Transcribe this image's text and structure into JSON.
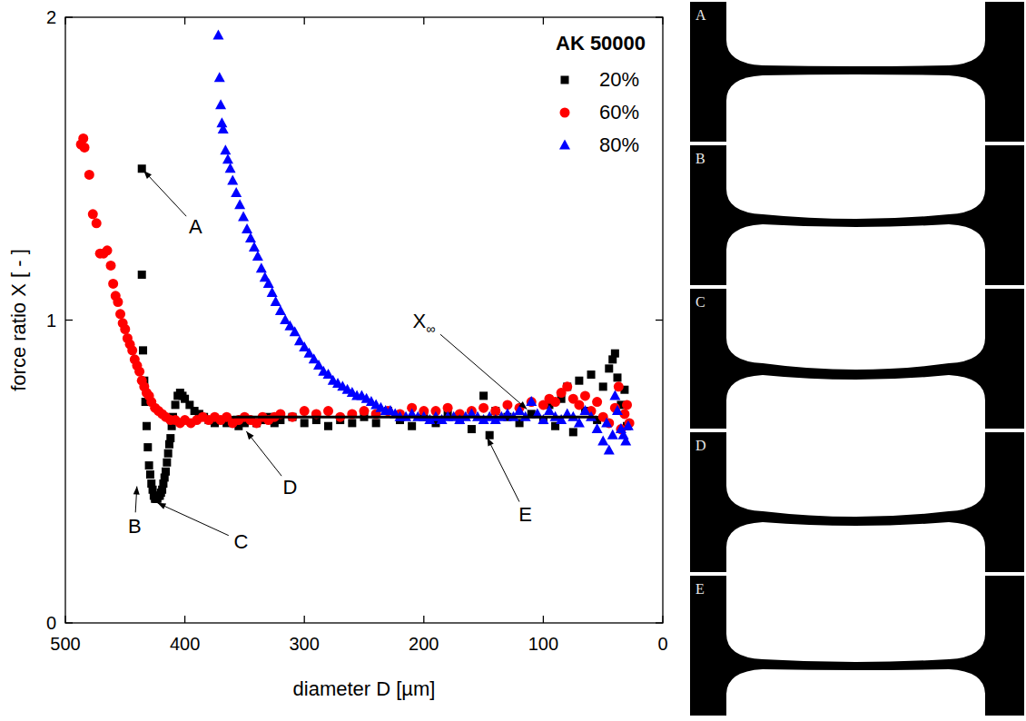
{
  "chart_data": {
    "type": "scatter",
    "xlabel": "diameter D [µm]",
    "ylabel": "force ratio X [ - ]",
    "legend_title": "AK 50000",
    "legend": "upper right",
    "grid": false,
    "xlim": [
      500,
      0
    ],
    "xticks": [
      500,
      400,
      300,
      200,
      100,
      0
    ],
    "ylim": [
      0,
      2
    ],
    "yticks": [
      0,
      1,
      2
    ],
    "series": [
      {
        "name": "20%",
        "color": "#000000",
        "marker": "square",
        "x": [
          436,
          436,
          435,
          434,
          433,
          432,
          431,
          430,
          429,
          428,
          427,
          426,
          425,
          424,
          423,
          422,
          421,
          420,
          419,
          418,
          417,
          416,
          415,
          414,
          413,
          412,
          411,
          410,
          408,
          406,
          404,
          402,
          400,
          396,
          392,
          388,
          384,
          380,
          375,
          370,
          365,
          360,
          355,
          350,
          345,
          340,
          335,
          330,
          325,
          320,
          310,
          300,
          290,
          280,
          270,
          260,
          250,
          240,
          230,
          220,
          210,
          200,
          190,
          180,
          170,
          160,
          150,
          145,
          140,
          130,
          120,
          110,
          100,
          95,
          90,
          85,
          80,
          75,
          70,
          65,
          60,
          55,
          50,
          45,
          42,
          40,
          38,
          35,
          32,
          30
        ],
        "values": [
          1.5,
          1.15,
          0.9,
          0.8,
          0.73,
          0.65,
          0.58,
          0.52,
          0.49,
          0.46,
          0.44,
          0.42,
          0.41,
          0.41,
          0.41,
          0.42,
          0.42,
          0.43,
          0.44,
          0.46,
          0.48,
          0.5,
          0.53,
          0.56,
          0.59,
          0.61,
          0.65,
          0.68,
          0.72,
          0.75,
          0.76,
          0.75,
          0.74,
          0.72,
          0.7,
          0.69,
          0.68,
          0.67,
          0.66,
          0.67,
          0.66,
          0.67,
          0.65,
          0.66,
          0.67,
          0.66,
          0.67,
          0.68,
          0.66,
          0.67,
          0.68,
          0.66,
          0.67,
          0.65,
          0.67,
          0.66,
          0.68,
          0.66,
          0.7,
          0.67,
          0.65,
          0.68,
          0.66,
          0.69,
          0.67,
          0.64,
          0.75,
          0.62,
          0.7,
          0.68,
          0.66,
          0.69,
          0.67,
          0.72,
          0.65,
          0.74,
          0.78,
          0.63,
          0.8,
          0.7,
          0.82,
          0.67,
          0.78,
          0.84,
          0.87,
          0.89,
          0.81,
          0.72,
          0.77,
          0.65
        ]
      },
      {
        "name": "60%",
        "color": "#ff0000",
        "marker": "circle",
        "x": [
          487,
          485,
          484,
          480,
          477,
          474,
          471,
          468,
          465,
          462,
          460,
          458,
          456,
          454,
          452,
          450,
          448,
          446,
          444,
          442,
          440,
          438,
          436,
          434,
          432,
          430,
          428,
          425,
          422,
          419,
          416,
          412,
          408,
          404,
          400,
          395,
          390,
          385,
          380,
          375,
          370,
          365,
          360,
          355,
          350,
          345,
          340,
          335,
          330,
          325,
          320,
          310,
          300,
          290,
          280,
          270,
          260,
          250,
          240,
          230,
          220,
          210,
          200,
          190,
          180,
          170,
          160,
          150,
          140,
          130,
          120,
          110,
          100,
          95,
          90,
          85,
          80,
          75,
          70,
          65,
          60,
          55,
          50,
          45,
          40,
          37,
          35,
          32,
          30,
          28
        ],
        "values": [
          1.58,
          1.6,
          1.57,
          1.48,
          1.35,
          1.32,
          1.22,
          1.22,
          1.23,
          1.18,
          1.12,
          1.08,
          1.06,
          1.02,
          0.99,
          0.97,
          0.94,
          0.92,
          0.9,
          0.87,
          0.85,
          0.83,
          0.8,
          0.78,
          0.76,
          0.75,
          0.73,
          0.71,
          0.7,
          0.69,
          0.68,
          0.67,
          0.67,
          0.66,
          0.67,
          0.66,
          0.67,
          0.68,
          0.67,
          0.68,
          0.67,
          0.68,
          0.66,
          0.67,
          0.68,
          0.67,
          0.66,
          0.68,
          0.67,
          0.68,
          0.69,
          0.68,
          0.7,
          0.69,
          0.7,
          0.68,
          0.69,
          0.7,
          0.69,
          0.7,
          0.69,
          0.71,
          0.7,
          0.7,
          0.71,
          0.69,
          0.7,
          0.71,
          0.7,
          0.72,
          0.71,
          0.73,
          0.72,
          0.74,
          0.73,
          0.76,
          0.78,
          0.74,
          0.72,
          0.75,
          0.7,
          0.73,
          0.68,
          0.66,
          0.71,
          0.78,
          0.64,
          0.69,
          0.72,
          0.66
        ]
      },
      {
        "name": "80%",
        "color": "#0000ff",
        "marker": "triangle",
        "x": [
          372,
          371,
          370,
          369,
          368,
          366,
          364,
          362,
          360,
          357,
          354,
          351,
          348,
          345,
          342,
          339,
          336,
          333,
          330,
          327,
          324,
          320,
          316,
          312,
          308,
          304,
          300,
          296,
          292,
          288,
          284,
          280,
          276,
          272,
          268,
          264,
          260,
          256,
          252,
          248,
          244,
          240,
          236,
          232,
          228,
          224,
          220,
          215,
          210,
          205,
          200,
          195,
          190,
          185,
          180,
          175,
          170,
          165,
          160,
          155,
          150,
          145,
          140,
          135,
          130,
          125,
          120,
          115,
          110,
          105,
          100,
          95,
          90,
          85,
          80,
          75,
          70,
          65,
          60,
          55,
          50,
          47,
          45,
          42,
          40,
          38,
          35,
          33,
          31,
          29
        ],
        "values": [
          1.94,
          1.8,
          1.71,
          1.65,
          1.63,
          1.56,
          1.53,
          1.5,
          1.46,
          1.42,
          1.38,
          1.34,
          1.3,
          1.27,
          1.24,
          1.21,
          1.17,
          1.14,
          1.12,
          1.09,
          1.06,
          1.03,
          1.0,
          0.98,
          0.96,
          0.93,
          0.91,
          0.89,
          0.87,
          0.85,
          0.83,
          0.82,
          0.8,
          0.79,
          0.78,
          0.77,
          0.76,
          0.75,
          0.75,
          0.74,
          0.73,
          0.72,
          0.71,
          0.7,
          0.7,
          0.69,
          0.68,
          0.68,
          0.69,
          0.68,
          0.68,
          0.67,
          0.68,
          0.67,
          0.68,
          0.68,
          0.67,
          0.68,
          0.69,
          0.68,
          0.67,
          0.68,
          0.67,
          0.68,
          0.69,
          0.68,
          0.7,
          0.68,
          0.73,
          0.69,
          0.67,
          0.7,
          0.68,
          0.67,
          0.69,
          0.68,
          0.66,
          0.7,
          0.68,
          0.64,
          0.6,
          0.66,
          0.57,
          0.62,
          0.75,
          0.7,
          0.64,
          0.62,
          0.6,
          0.65
        ]
      }
    ],
    "reference_line": {
      "y": 0.68,
      "x": [
        360,
        55
      ]
    },
    "annotations": [
      {
        "text": "A",
        "x": 436,
        "y": 1.5,
        "text_x": 391,
        "text_y": 1.31
      },
      {
        "text": "B",
        "x": 440,
        "y": 0.46,
        "text_x": 442,
        "text_y": 0.32
      },
      {
        "text": "C",
        "x": 425,
        "y": 0.4,
        "text_x": 353,
        "text_y": 0.27
      },
      {
        "text": "D",
        "x": 350,
        "y": 0.64,
        "text_x": 312,
        "text_y": 0.45
      },
      {
        "text": "E",
        "x": 148,
        "y": 0.62,
        "text_x": 115,
        "text_y": 0.36
      },
      {
        "text": "X∞",
        "x": 112,
        "y": 0.7,
        "text_x": 200,
        "text_y": 1.0
      }
    ]
  },
  "images": {
    "labels": [
      "A",
      "B",
      "C",
      "D",
      "E"
    ]
  }
}
